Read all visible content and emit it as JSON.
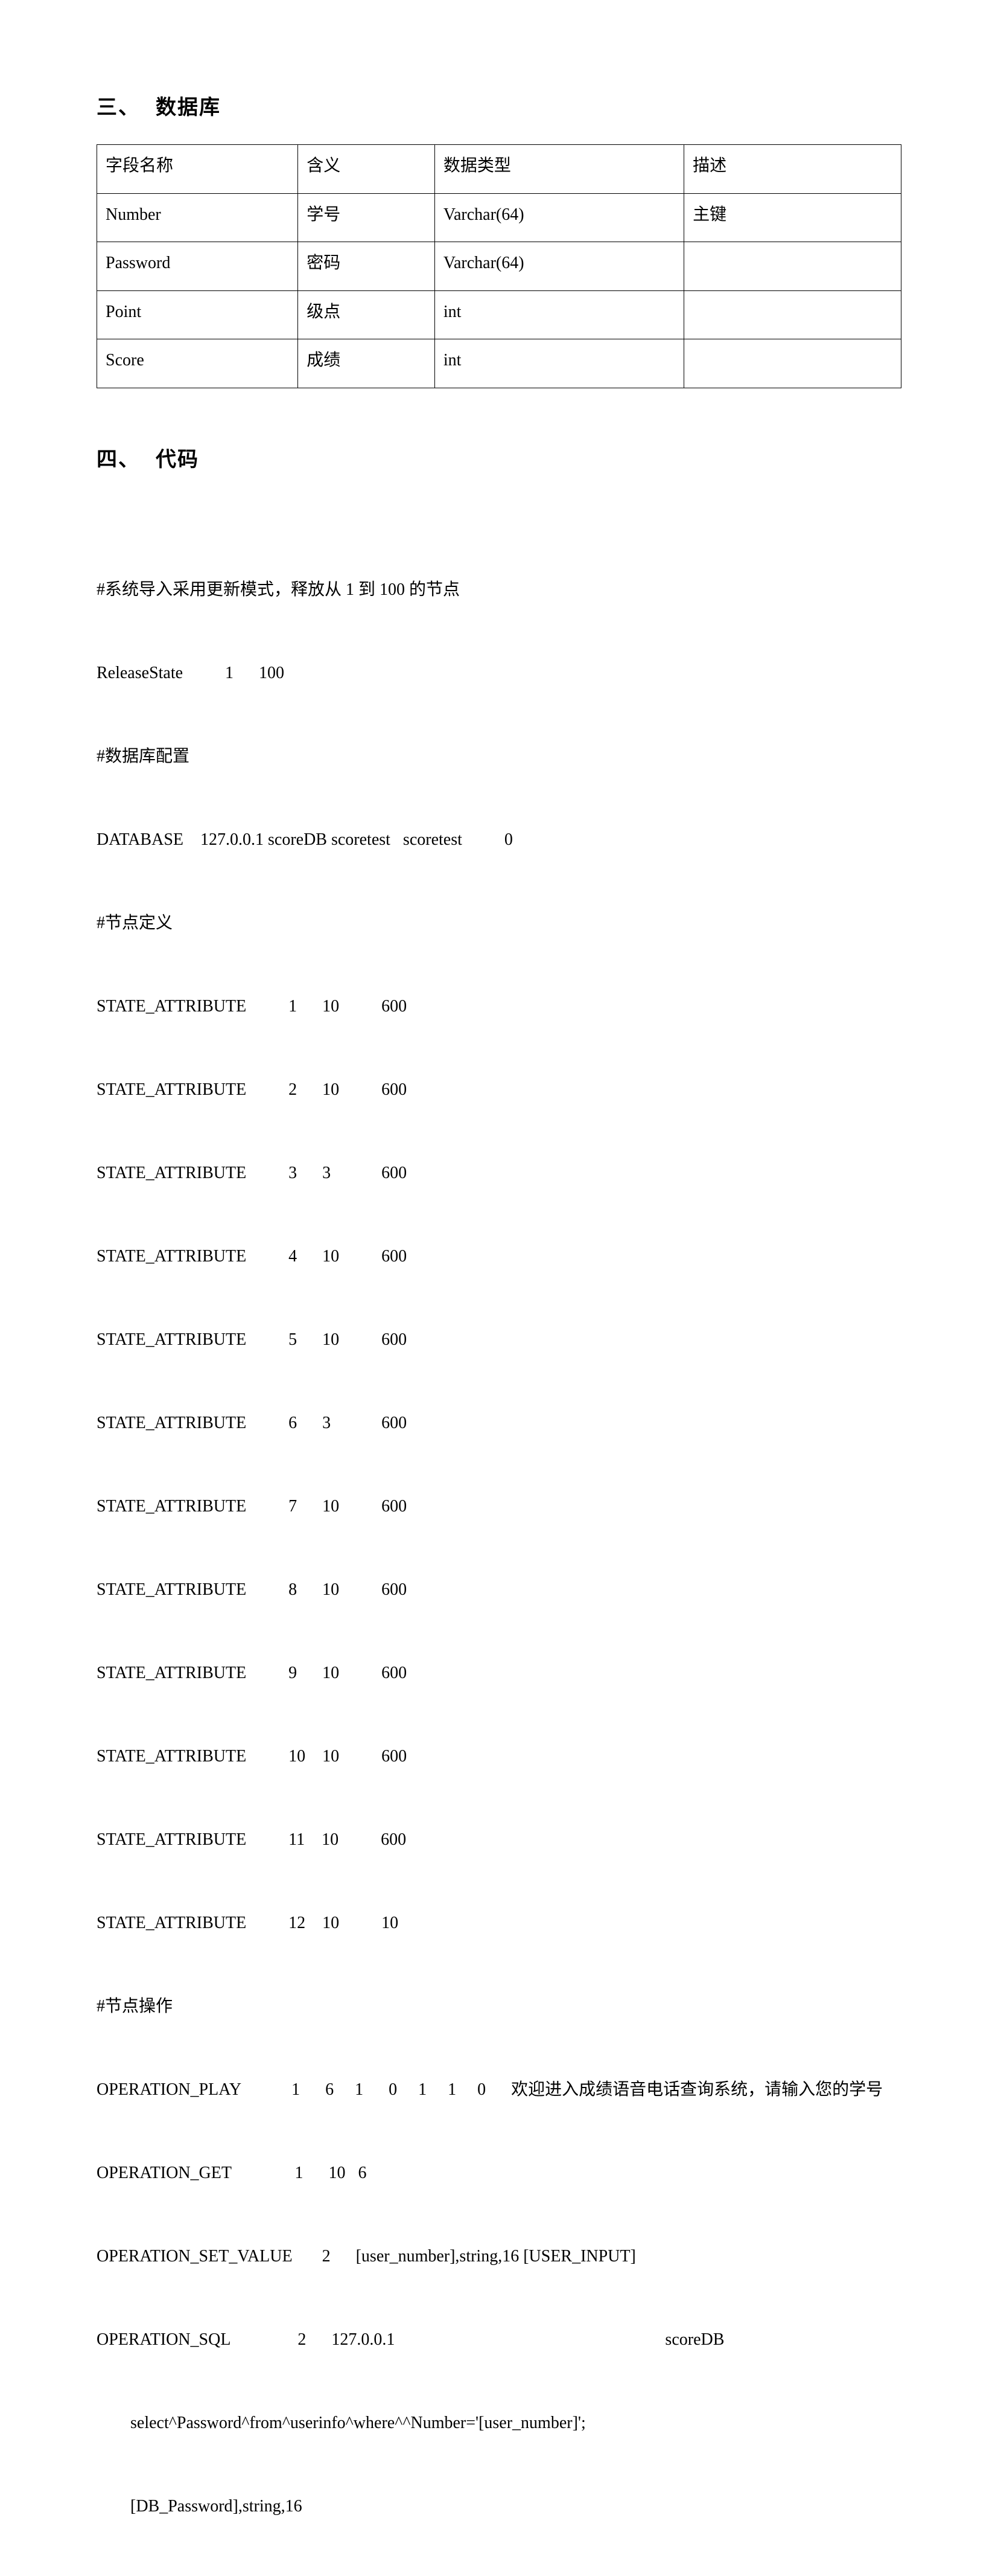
{
  "sections": {
    "s3": {
      "num": "三、",
      "title": "数据库"
    },
    "s4": {
      "num": "四、",
      "title": "代码"
    }
  },
  "db_table": {
    "columns": [
      "字段名称",
      "含义",
      "数据类型",
      "描述"
    ],
    "rows": [
      [
        "Number",
        "学号",
        "Varchar(64)",
        "主键"
      ],
      [
        "Password",
        "密码",
        "Varchar(64)",
        ""
      ],
      [
        "Point",
        "级点",
        "int",
        ""
      ],
      [
        "Score",
        "成绩",
        "int",
        ""
      ]
    ]
  },
  "code": [
    "#系统导入采用更新模式，释放从 1 到 100 的节点",
    "ReleaseState          1      100",
    "#数据库配置",
    "DATABASE    127.0.0.1 scoreDB scoretest   scoretest          0",
    "#节点定义",
    "STATE_ATTRIBUTE          1      10          600",
    "STATE_ATTRIBUTE          2      10          600",
    "STATE_ATTRIBUTE          3      3            600",
    "STATE_ATTRIBUTE          4      10          600",
    "STATE_ATTRIBUTE          5      10          600",
    "STATE_ATTRIBUTE          6      3            600",
    "STATE_ATTRIBUTE          7      10          600",
    "STATE_ATTRIBUTE          8      10          600",
    "STATE_ATTRIBUTE          9      10          600",
    "STATE_ATTRIBUTE          10    10          600",
    "STATE_ATTRIBUTE          11    10          600",
    "STATE_ATTRIBUTE          12    10          10",
    "#节点操作",
    "OPERATION_PLAY            1      6     1      0     1     1     0      欢迎进入成绩语音电话查询系统，请输入您的学号",
    "OPERATION_GET               1      10   6",
    "OPERATION_SET_VALUE       2      [user_number],string,16 [USER_INPUT]",
    "OPERATION_SQL                2      127.0.0.1                                                                scoreDB",
    "        select^Password^from^userinfo^where^^Number='[user_number]';",
    "        [DB_Password],string,16"
  ]
}
